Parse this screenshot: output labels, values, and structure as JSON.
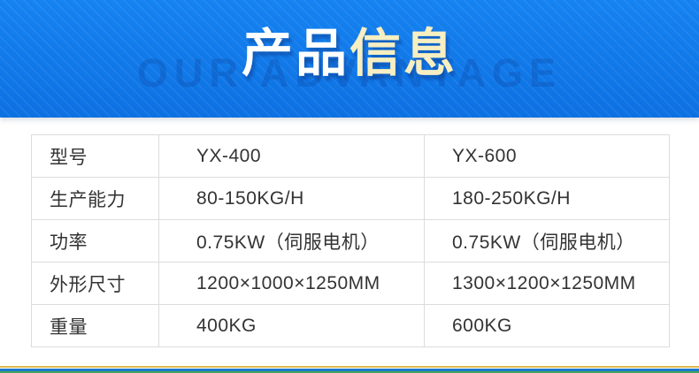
{
  "banner": {
    "title_part1": "产品",
    "title_part2": "信息",
    "watermark": "OUR ADVANTAGE",
    "background_color": "#0d71e3",
    "title_color_primary": "#ffffff",
    "title_color_accent": "#f7efc1"
  },
  "table": {
    "rows": [
      {
        "label": "型号",
        "col1": "YX-400",
        "col2": "YX-600"
      },
      {
        "label": "生产能力",
        "col1": "80-150KG/H",
        "col2": "180-250KG/H"
      },
      {
        "label": "功率",
        "col1": "0.75KW（伺服电机）",
        "col2": "0.75KW（伺服电机）"
      },
      {
        "label": "外形尺寸",
        "col1": "1200×1000×1250MM",
        "col2": "1300×1200×1250MM"
      },
      {
        "label": "重量",
        "col1": "400KG",
        "col2": "600KG"
      }
    ]
  },
  "footer": {
    "accent_colors": [
      "#dcb94b",
      "#1d78cd",
      "#43a45f"
    ]
  }
}
